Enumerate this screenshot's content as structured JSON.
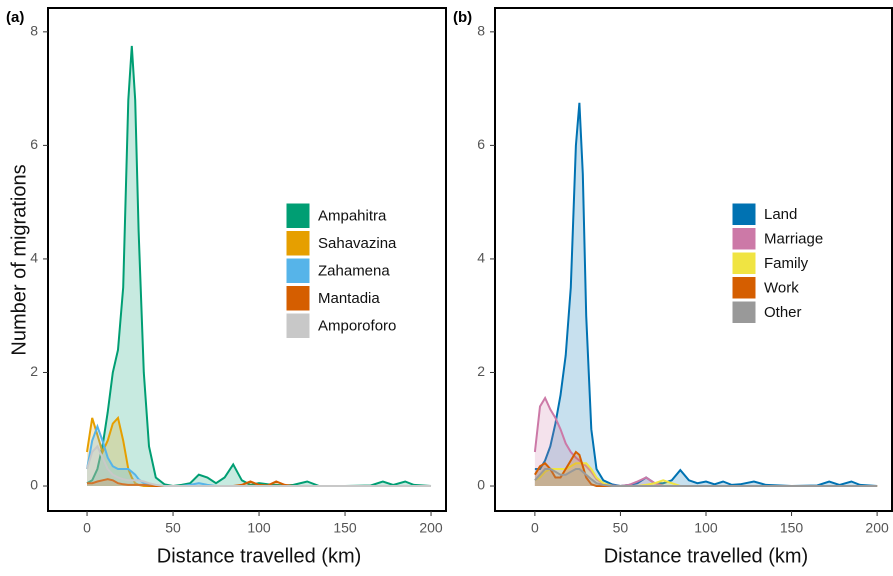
{
  "chart_data": [
    {
      "type": "area",
      "label": "(a)",
      "ylabel": "Number of  migrations",
      "xlabel": "Distance travelled (km)",
      "x": [
        0,
        3,
        6,
        9,
        12,
        15,
        18,
        21,
        24,
        26,
        28,
        30,
        33,
        36,
        40,
        45,
        50,
        55,
        60,
        65,
        70,
        75,
        80,
        85,
        90,
        95,
        100,
        105,
        110,
        115,
        120,
        128,
        135,
        150,
        165,
        172,
        178,
        185,
        190,
        200
      ],
      "series": [
        {
          "name": "Ampahitra",
          "color": "#009E73",
          "values": [
            0.05,
            0.1,
            0.3,
            0.7,
            1.3,
            2.0,
            2.4,
            3.5,
            6.8,
            7.75,
            6.8,
            4.5,
            2.0,
            0.7,
            0.15,
            0.03,
            0,
            0.02,
            0.05,
            0.2,
            0.15,
            0.05,
            0.15,
            0.38,
            0.1,
            0.02,
            0.05,
            0.03,
            0.02,
            0.01,
            0.02,
            0.08,
            0,
            0,
            0.01,
            0.08,
            0.02,
            0.08,
            0.02,
            0
          ]
        },
        {
          "name": "Sahavazina",
          "color": "#E69F00",
          "values": [
            0.6,
            1.2,
            0.9,
            0.6,
            0.8,
            1.1,
            1.2,
            0.8,
            0.3,
            0.15,
            0.05,
            0.02,
            0,
            0,
            0,
            0,
            0,
            0,
            0,
            0,
            0,
            0,
            0,
            0,
            0,
            0,
            0,
            0,
            0,
            0,
            0,
            0,
            0,
            0,
            0,
            0,
            0,
            0,
            0,
            0
          ]
        },
        {
          "name": "Zahamena",
          "color": "#56B4E9",
          "values": [
            0.3,
            0.8,
            1.05,
            0.8,
            0.5,
            0.35,
            0.3,
            0.3,
            0.3,
            0.25,
            0.2,
            0.12,
            0.05,
            0.02,
            0.01,
            0,
            0,
            0,
            0.02,
            0.05,
            0.02,
            0,
            0,
            0,
            0,
            0,
            0,
            0,
            0,
            0,
            0,
            0,
            0,
            0,
            0,
            0,
            0,
            0,
            0,
            0
          ]
        },
        {
          "name": "Mantadia",
          "color": "#D55E00",
          "values": [
            0.05,
            0.05,
            0.08,
            0.1,
            0.12,
            0.1,
            0.05,
            0.03,
            0.02,
            0.02,
            0.02,
            0.02,
            0.02,
            0.01,
            0,
            0,
            0,
            0,
            0,
            0,
            0,
            0,
            0,
            0,
            0.02,
            0.08,
            0.02,
            0.01,
            0.08,
            0.02,
            0,
            0,
            0,
            0,
            0,
            0,
            0,
            0,
            0,
            0
          ]
        },
        {
          "name": "Amporoforo",
          "color": "#c8c8c8",
          "values": [
            0.3,
            0.6,
            0.7,
            0.5,
            0.3,
            0.2,
            0.15,
            0.12,
            0.1,
            0.1,
            0.1,
            0.1,
            0.08,
            0.05,
            0.02,
            0,
            0,
            0,
            0,
            0,
            0,
            0,
            0,
            0,
            0,
            0,
            0,
            0,
            0,
            0,
            0,
            0,
            0,
            0,
            0,
            0,
            0,
            0,
            0,
            0
          ]
        }
      ],
      "xlim": [
        -22.7,
        208.7
      ],
      "ylim": [
        -0.44,
        8.42
      ],
      "xticks": [
        0,
        50,
        100,
        150,
        200
      ],
      "yticks": [
        0,
        2,
        4,
        6,
        8
      ],
      "legend": "center-right"
    },
    {
      "type": "area",
      "label": "(b)",
      "xlabel": "Distance travelled (km)",
      "x": [
        0,
        3,
        6,
        9,
        12,
        15,
        18,
        21,
        24,
        26,
        28,
        30,
        33,
        36,
        40,
        45,
        50,
        55,
        60,
        65,
        70,
        75,
        80,
        85,
        90,
        95,
        100,
        105,
        110,
        115,
        120,
        128,
        135,
        150,
        165,
        172,
        178,
        185,
        190,
        200
      ],
      "series": [
        {
          "name": "Land",
          "color": "#0072B2",
          "values": [
            0.3,
            0.3,
            0.45,
            0.7,
            1.1,
            1.6,
            2.3,
            3.5,
            6.0,
            6.75,
            5.5,
            3.0,
            1.0,
            0.3,
            0.1,
            0.03,
            0,
            0.02,
            0.05,
            0.15,
            0.05,
            0.05,
            0.1,
            0.28,
            0.1,
            0.05,
            0.08,
            0.03,
            0.08,
            0.02,
            0.03,
            0.08,
            0.02,
            0,
            0.01,
            0.08,
            0.02,
            0.08,
            0.02,
            0
          ]
        },
        {
          "name": "Marriage",
          "color": "#CC79A7",
          "values": [
            0.6,
            1.4,
            1.55,
            1.35,
            1.2,
            1.0,
            0.75,
            0.6,
            0.5,
            0.45,
            0.4,
            0.35,
            0.25,
            0.12,
            0.04,
            0.01,
            0,
            0.02,
            0.08,
            0.15,
            0.05,
            0,
            0,
            0,
            0,
            0,
            0,
            0,
            0,
            0,
            0,
            0,
            0,
            0,
            0,
            0,
            0,
            0,
            0,
            0
          ]
        },
        {
          "name": "Family",
          "color": "#F0E442",
          "values": [
            0.1,
            0.15,
            0.25,
            0.3,
            0.3,
            0.3,
            0.3,
            0.35,
            0.4,
            0.4,
            0.4,
            0.4,
            0.3,
            0.15,
            0.05,
            0,
            0,
            0,
            0,
            0.02,
            0.05,
            0.1,
            0.05,
            0,
            0,
            0,
            0,
            0,
            0,
            0,
            0,
            0,
            0,
            0,
            0,
            0,
            0,
            0,
            0,
            0
          ]
        },
        {
          "name": "Work",
          "color": "#D55E00",
          "values": [
            0.2,
            0.35,
            0.4,
            0.3,
            0.15,
            0.15,
            0.3,
            0.45,
            0.6,
            0.55,
            0.35,
            0.15,
            0.03,
            0,
            0,
            0,
            0,
            0,
            0,
            0,
            0,
            0,
            0,
            0,
            0,
            0,
            0,
            0,
            0,
            0,
            0,
            0,
            0,
            0,
            0,
            0,
            0,
            0,
            0,
            0
          ]
        },
        {
          "name": "Other",
          "color": "#999999",
          "values": [
            0.1,
            0.2,
            0.3,
            0.3,
            0.25,
            0.2,
            0.2,
            0.25,
            0.3,
            0.3,
            0.25,
            0.2,
            0.12,
            0.05,
            0.02,
            0,
            0,
            0,
            0,
            0,
            0,
            0,
            0,
            0,
            0,
            0,
            0,
            0,
            0,
            0,
            0,
            0,
            0,
            0,
            0,
            0,
            0,
            0,
            0,
            0
          ]
        }
      ],
      "xlim": [
        -23.3,
        208.7
      ],
      "ylim": [
        -0.44,
        8.42
      ],
      "xticks": [
        0,
        50,
        100,
        150,
        200
      ],
      "yticks": [
        0,
        2,
        4,
        6,
        8
      ],
      "legend": "center-right"
    }
  ]
}
